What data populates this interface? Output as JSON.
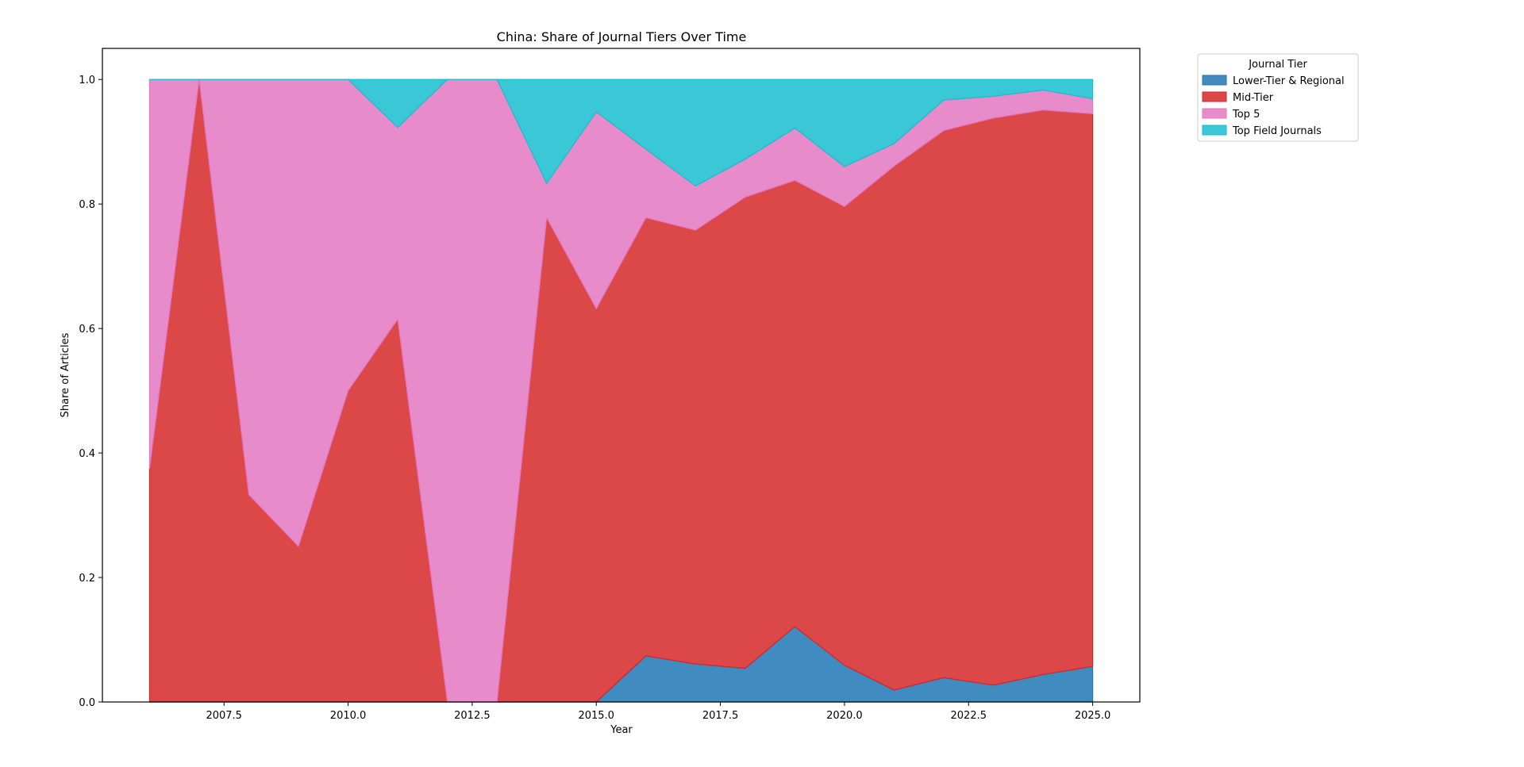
{
  "chart_data": {
    "type": "area",
    "stacked": true,
    "title": "China: Share of Journal Tiers Over Time",
    "xlabel": "Year",
    "ylabel": "Share of Articles",
    "xlim": [
      2005.05,
      2025.95
    ],
    "ylim": [
      0,
      1.05
    ],
    "xticks": [
      2007.5,
      2010.0,
      2012.5,
      2015.0,
      2017.5,
      2020.0,
      2022.5,
      2025.0
    ],
    "xtick_labels": [
      "2007.5",
      "2010.0",
      "2012.5",
      "2015.0",
      "2017.5",
      "2020.0",
      "2022.5",
      "2025.0"
    ],
    "yticks": [
      0.0,
      0.2,
      0.4,
      0.6,
      0.8,
      1.0
    ],
    "ytick_labels": [
      "0.0",
      "0.2",
      "0.4",
      "0.6",
      "0.8",
      "1.0"
    ],
    "grid": false,
    "legend": {
      "title": "Journal Tier",
      "placement": "outside-top-right"
    },
    "x": [
      2006,
      2007,
      2008,
      2009,
      2010,
      2011,
      2012,
      2013,
      2014,
      2015,
      2016,
      2017,
      2018,
      2019,
      2020,
      2021,
      2022,
      2023,
      2024,
      2025
    ],
    "series": [
      {
        "name": "Lower-Tier & Regional",
        "color": "#1f77b4",
        "values": [
          0,
          0,
          0,
          0,
          0,
          0,
          0,
          0,
          0,
          0,
          0.074,
          0.061,
          0.054,
          0.121,
          0.059,
          0.019,
          0.039,
          0.027,
          0.044,
          0.057
        ]
      },
      {
        "name": "Mid-Tier",
        "color": "#d62728",
        "values": [
          0.375,
          1.0,
          0.333,
          0.25,
          0.5,
          0.615,
          0,
          0,
          0.778,
          0.632,
          0.704,
          0.697,
          0.757,
          0.717,
          0.737,
          0.842,
          0.879,
          0.911,
          0.907,
          0.888
        ]
      },
      {
        "name": "Top 5",
        "color": "#e377c2",
        "values": [
          0.625,
          0,
          0.667,
          0.75,
          0.5,
          0.308,
          1.0,
          1.0,
          0.055,
          0.316,
          0.11,
          0.071,
          0.061,
          0.084,
          0.064,
          0.036,
          0.049,
          0.035,
          0.032,
          0.024
        ]
      },
      {
        "name": "Top Field Journals",
        "color": "#17becf",
        "values": [
          0,
          0,
          0,
          0,
          0,
          0.077,
          0,
          0,
          0.167,
          0.052,
          0.112,
          0.171,
          0.128,
          0.078,
          0.14,
          0.103,
          0.033,
          0.027,
          0.017,
          0.031
        ]
      }
    ]
  }
}
